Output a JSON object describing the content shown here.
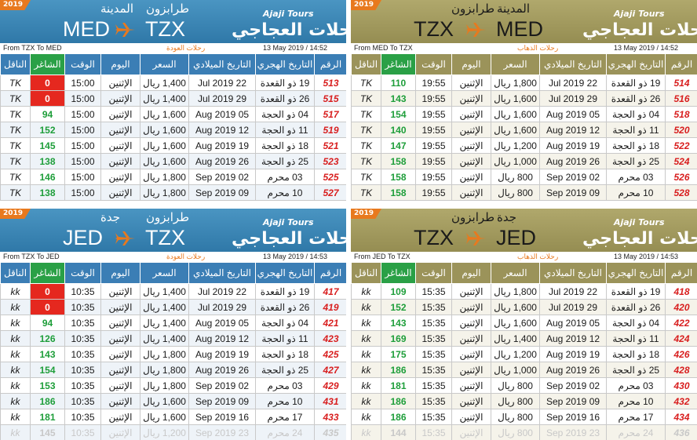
{
  "badge": "2019",
  "brand": {
    "latin": "Ajaji Tours",
    "arabic": "رحلات العجاجي"
  },
  "columns": [
    "الرقم",
    "التاريخ الهجري",
    "التاريخ الميلادي",
    "السعر",
    "اليوم",
    "الوقت",
    "الشاغر",
    "الناقل"
  ],
  "panels": [
    {
      "theme": "blue",
      "from_code": "TZX",
      "to_code": "MED",
      "from_city": "طرابزون",
      "to_city": "المدينة",
      "route": "From TZX To MED",
      "direction": "رحلات العودة",
      "stamp": "13 May 2019 / 14:52",
      "rows": [
        [
          513,
          "19 ذو القعدة",
          "22 Jul 2019",
          "1,400 ريال",
          "الإثنين",
          "15:00",
          0,
          "TK"
        ],
        [
          515,
          "26 ذو القعدة",
          "29 Jul 2019",
          "1,400 ريال",
          "الإثنين",
          "15:00",
          0,
          "TK"
        ],
        [
          517,
          "04 ذو الحجة",
          "05 Aug 2019",
          "1,600 ريال",
          "الإثنين",
          "15:00",
          94,
          "TK"
        ],
        [
          519,
          "11 ذو الحجة",
          "12 Aug 2019",
          "1,600 ريال",
          "الإثنين",
          "15:00",
          152,
          "TK"
        ],
        [
          521,
          "18 ذو الحجة",
          "19 Aug 2019",
          "1,600 ريال",
          "الإثنين",
          "15:00",
          145,
          "TK"
        ],
        [
          523,
          "25 ذو الحجة",
          "26 Aug 2019",
          "1,600 ريال",
          "الإثنين",
          "15:00",
          138,
          "TK"
        ],
        [
          525,
          "03 محرم",
          "02 Sep 2019",
          "1,800 ريال",
          "الإثنين",
          "15:00",
          146,
          "TK"
        ],
        [
          527,
          "10 محرم",
          "09 Sep 2019",
          "1,800 ريال",
          "الإثنين",
          "15:00",
          138,
          "TK"
        ]
      ]
    },
    {
      "theme": "olive",
      "from_code": "MED",
      "to_code": "TZX",
      "from_city": "المدينة",
      "to_city": "طرابزون",
      "route": "From MED To TZX",
      "direction": "رحلات الذهاب",
      "stamp": "13 May 2019 / 14:52",
      "rows": [
        [
          514,
          "19 ذو القعدة",
          "22 Jul 2019",
          "1,800 ريال",
          "الإثنين",
          "19:55",
          110,
          "TK"
        ],
        [
          516,
          "26 ذو القعدة",
          "29 Jul 2019",
          "1,600 ريال",
          "الإثنين",
          "19:55",
          143,
          "TK"
        ],
        [
          518,
          "04 ذو الحجة",
          "05 Aug 2019",
          "1,600 ريال",
          "الإثنين",
          "19:55",
          154,
          "TK"
        ],
        [
          520,
          "11 ذو الحجة",
          "12 Aug 2019",
          "1,600 ريال",
          "الإثنين",
          "19:55",
          140,
          "TK"
        ],
        [
          522,
          "18 ذو الحجة",
          "19 Aug 2019",
          "1,200 ريال",
          "الإثنين",
          "19:55",
          147,
          "TK"
        ],
        [
          524,
          "25 ذو الحجة",
          "26 Aug 2019",
          "1,000 ريال",
          "الإثنين",
          "19:55",
          158,
          "TK"
        ],
        [
          526,
          "03 محرم",
          "02 Sep 2019",
          "800 ريال",
          "الإثنين",
          "19:55",
          158,
          "TK"
        ],
        [
          528,
          "10 محرم",
          "09 Sep 2019",
          "800 ريال",
          "الإثنين",
          "19:55",
          158,
          "TK"
        ]
      ]
    },
    {
      "theme": "blue",
      "from_code": "TZX",
      "to_code": "JED",
      "from_city": "طرابزون",
      "to_city": "جدة",
      "route": "From TZX To JED",
      "direction": "رحلات العودة",
      "stamp": "13 May 2019 / 14:53",
      "rows": [
        [
          417,
          "19 ذو القعدة",
          "22 Jul 2019",
          "1,400 ريال",
          "الإثنين",
          "10:35",
          0,
          "kk"
        ],
        [
          419,
          "26 ذو القعدة",
          "29 Jul 2019",
          "1,400 ريال",
          "الإثنين",
          "10:35",
          0,
          "kk"
        ],
        [
          421,
          "04 ذو الحجة",
          "05 Aug 2019",
          "1,400 ريال",
          "الإثنين",
          "10:35",
          94,
          "kk"
        ],
        [
          423,
          "11 ذو الحجة",
          "12 Aug 2019",
          "1,400 ريال",
          "الإثنين",
          "10:35",
          126,
          "kk"
        ],
        [
          425,
          "18 ذو الحجة",
          "19 Aug 2019",
          "1,800 ريال",
          "الإثنين",
          "10:35",
          143,
          "kk"
        ],
        [
          427,
          "25 ذو الحجة",
          "26 Aug 2019",
          "1,800 ريال",
          "الإثنين",
          "10:35",
          154,
          "kk"
        ],
        [
          429,
          "03 محرم",
          "02 Sep 2019",
          "1,800 ريال",
          "الإثنين",
          "10:35",
          153,
          "kk"
        ],
        [
          431,
          "10 محرم",
          "09 Sep 2019",
          "1,600 ريال",
          "الإثنين",
          "10:35",
          186,
          "kk"
        ],
        [
          433,
          "17 محرم",
          "16 Sep 2019",
          "1,600 ريال",
          "الإثنين",
          "10:35",
          181,
          "kk"
        ],
        [
          435,
          "24 محرم",
          "23 Sep 2019",
          "1,200 ريال",
          "الإثنين",
          "10:35",
          145,
          "kk"
        ]
      ],
      "faded_last": true
    },
    {
      "theme": "olive",
      "from_code": "JED",
      "to_code": "TZX",
      "from_city": "جدة",
      "to_city": "طرابزون",
      "route": "From JED To TZX",
      "direction": "رحلات الذهاب",
      "stamp": "13 May 2019 / 14:53",
      "rows": [
        [
          418,
          "19 ذو القعدة",
          "22 Jul 2019",
          "1,800 ريال",
          "الإثنين",
          "15:35",
          109,
          "kk"
        ],
        [
          420,
          "26 ذو القعدة",
          "29 Jul 2019",
          "1,600 ريال",
          "الإثنين",
          "15:35",
          152,
          "kk"
        ],
        [
          422,
          "04 ذو الحجة",
          "05 Aug 2019",
          "1,600 ريال",
          "الإثنين",
          "15:35",
          143,
          "kk"
        ],
        [
          424,
          "11 ذو الحجة",
          "12 Aug 2019",
          "1,400 ريال",
          "الإثنين",
          "15:35",
          169,
          "kk"
        ],
        [
          426,
          "18 ذو الحجة",
          "19 Aug 2019",
          "1,200 ريال",
          "الإثنين",
          "15:35",
          175,
          "kk"
        ],
        [
          428,
          "25 ذو الحجة",
          "26 Aug 2019",
          "1,000 ريال",
          "الإثنين",
          "15:35",
          186,
          "kk"
        ],
        [
          430,
          "03 محرم",
          "02 Sep 2019",
          "800 ريال",
          "الإثنين",
          "15:35",
          181,
          "kk"
        ],
        [
          432,
          "10 محرم",
          "09 Sep 2019",
          "800 ريال",
          "الإثنين",
          "15:35",
          186,
          "kk"
        ],
        [
          434,
          "17 محرم",
          "16 Sep 2019",
          "800 ريال",
          "الإثنين",
          "15:35",
          186,
          "kk"
        ],
        [
          436,
          "24 محرم",
          "23 Sep 2019",
          "800 ريال",
          "الإثنين",
          "15:35",
          144,
          "kk"
        ]
      ],
      "faded_last": true
    }
  ]
}
